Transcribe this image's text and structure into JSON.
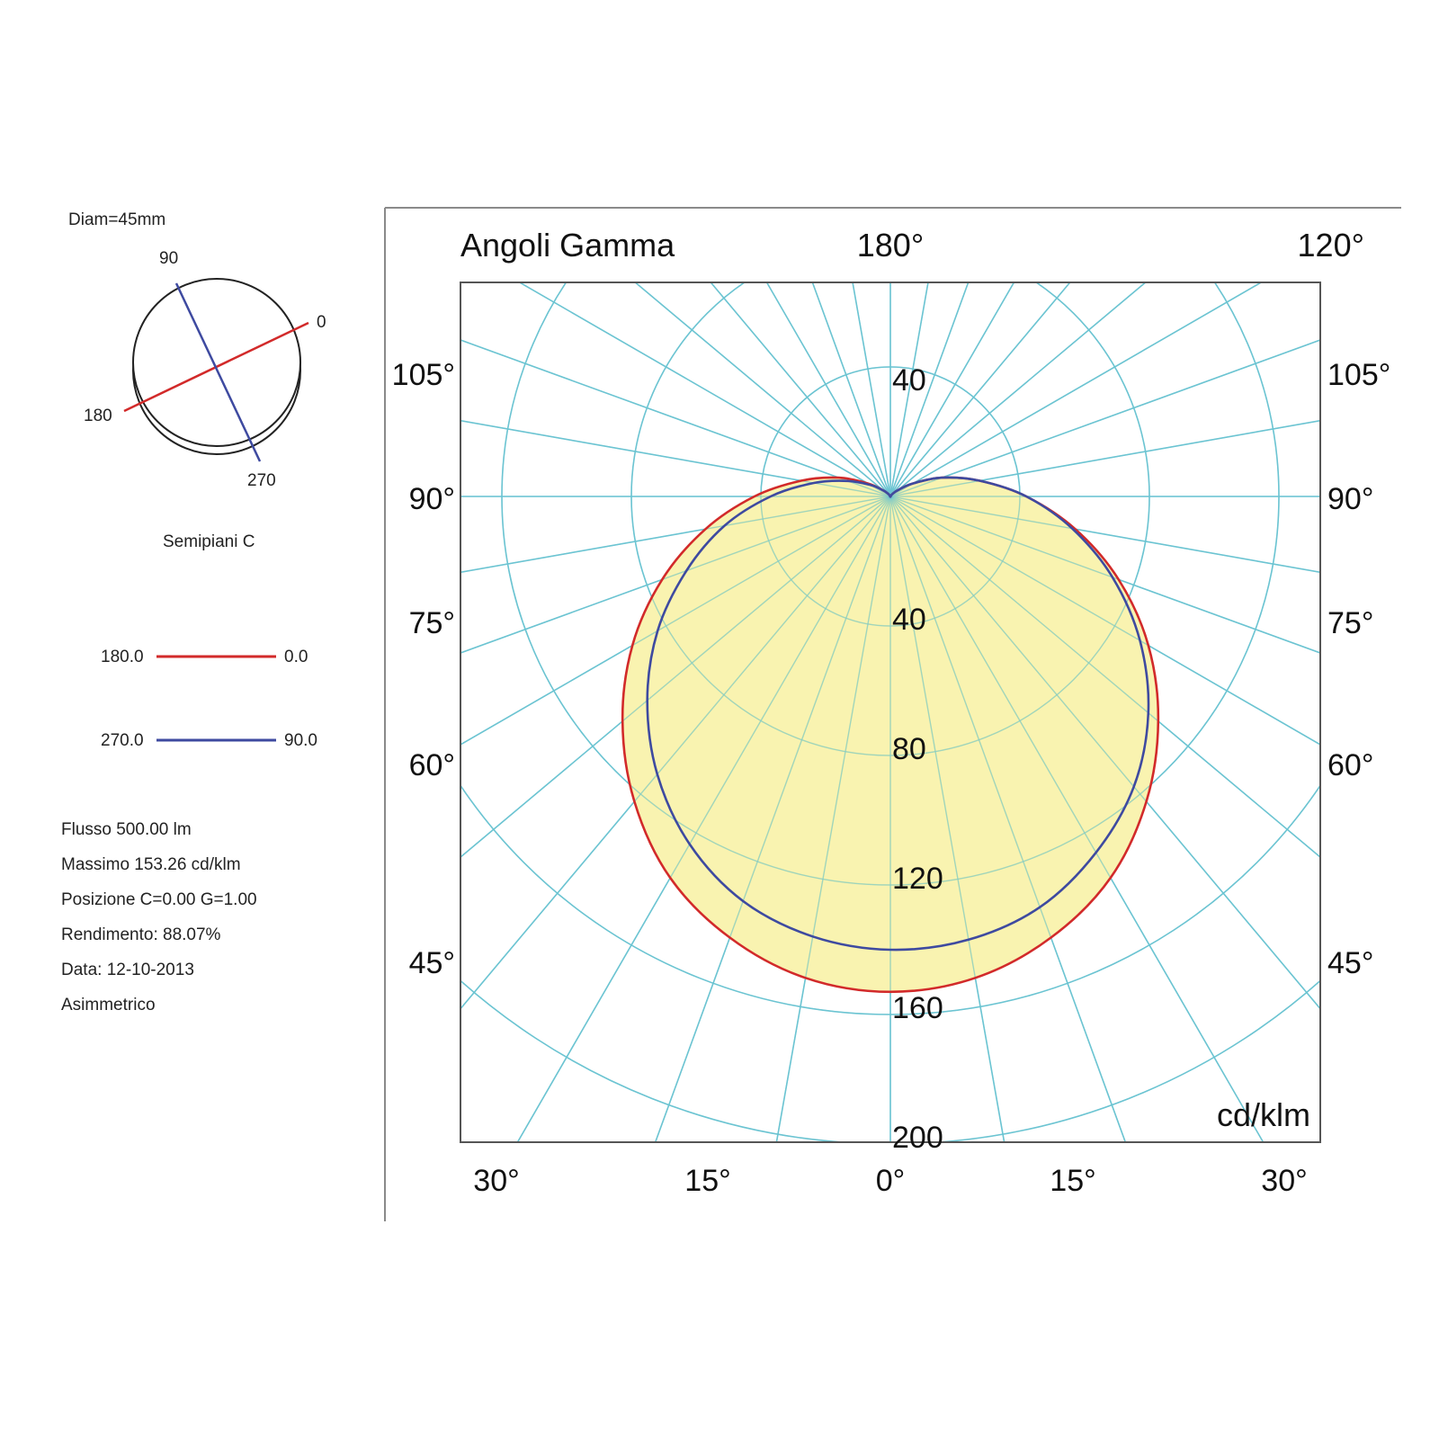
{
  "left_panel": {
    "diameter_label": "Diam=45mm",
    "plane_labels": {
      "p0": "0",
      "p90": "90",
      "p180": "180",
      "p270": "270"
    },
    "planes_caption": "Semipiani C",
    "legend": [
      {
        "left": "180.0",
        "right": "0.0",
        "color": "#d22a2a"
      },
      {
        "left": "270.0",
        "right": "90.0",
        "color": "#3e4aa0"
      }
    ],
    "info": [
      "Flusso 500.00  lm",
      "Massimo 153.26  cd/klm",
      "Posizione C=0.00 G=1.00",
      "Rendimento:  88.07%",
      "Data: 12-10-2013",
      "Asimmetrico"
    ]
  },
  "colors": {
    "grid": "#6cc4d2",
    "fill": "#f7ef9a",
    "curve_c0_180": "#d22a2a",
    "curve_c90_270": "#3e4aa0",
    "frame": "#555555"
  },
  "chart_data": {
    "type": "polar",
    "title": "Angoli Gamma",
    "unit": "cd/klm",
    "radial_ticks": [
      40,
      80,
      120,
      160,
      200
    ],
    "upper_radial_tick": "40",
    "top_angle_labels": [
      "180°",
      "120°"
    ],
    "side_angle_labels": [
      "105°",
      "90°",
      "75°",
      "60°",
      "45°"
    ],
    "bottom_angle_labels": [
      "30°",
      "15°",
      "0°",
      "15°",
      "30°"
    ],
    "grid_angle_step_deg": 10,
    "series": [
      {
        "name": "180.0 - 0.0",
        "color": "#d22a2a",
        "left_plane": "180.0",
        "right_plane": "0.0",
        "gamma": [
          0,
          10,
          20,
          30,
          40,
          50,
          60,
          70,
          80,
          90,
          100,
          110,
          120,
          130,
          140,
          150,
          160,
          170,
          180
        ],
        "left_intensity": [
          153,
          151,
          145,
          136,
          123,
          108,
          92,
          75,
          58,
          42,
          28,
          17,
          8,
          3,
          1,
          0,
          0,
          0,
          0
        ],
        "right_intensity": [
          153,
          151,
          145,
          136,
          123,
          108,
          92,
          75,
          58,
          42,
          28,
          17,
          8,
          3,
          1,
          0,
          0,
          0,
          0
        ]
      },
      {
        "name": "270.0 - 90.0",
        "color": "#3e4aa0",
        "left_plane": "270.0",
        "right_plane": "90.0",
        "gamma": [
          0,
          10,
          20,
          30,
          40,
          50,
          60,
          70,
          80,
          90,
          100,
          110,
          120,
          130,
          140,
          150,
          160,
          170,
          180
        ],
        "left_intensity": [
          140,
          138,
          133,
          124,
          112,
          98,
          83,
          67,
          52,
          37,
          24,
          14,
          7,
          3,
          1,
          0,
          0,
          0,
          0
        ],
        "right_intensity": [
          140,
          139,
          135,
          127,
          117,
          104,
          89,
          73,
          57,
          42,
          28,
          17,
          8,
          3,
          1,
          0,
          0,
          0,
          0
        ]
      }
    ]
  }
}
